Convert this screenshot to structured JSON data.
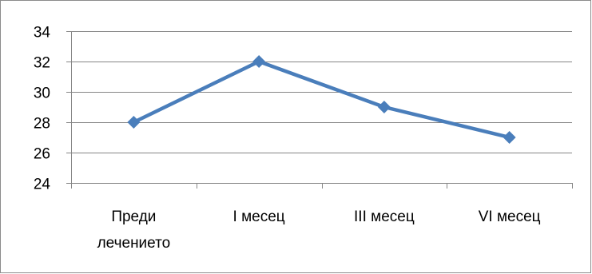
{
  "chart_data": {
    "type": "line",
    "categories": [
      "Преди лечението",
      "I месец",
      "III месец",
      "VI месец"
    ],
    "category_lines": [
      [
        "Преди",
        "лечението"
      ],
      [
        "I месец"
      ],
      [
        "III месец"
      ],
      [
        "VI месец"
      ]
    ],
    "series": [
      {
        "values": [
          28,
          32,
          29,
          27
        ],
        "color": "#4a7ebb",
        "marker": "diamond"
      }
    ],
    "ylim": [
      24,
      34
    ],
    "yticks": [
      24,
      26,
      28,
      30,
      32,
      34
    ],
    "grid": true,
    "legend": "none",
    "title": "",
    "xlabel": "",
    "ylabel": ""
  }
}
